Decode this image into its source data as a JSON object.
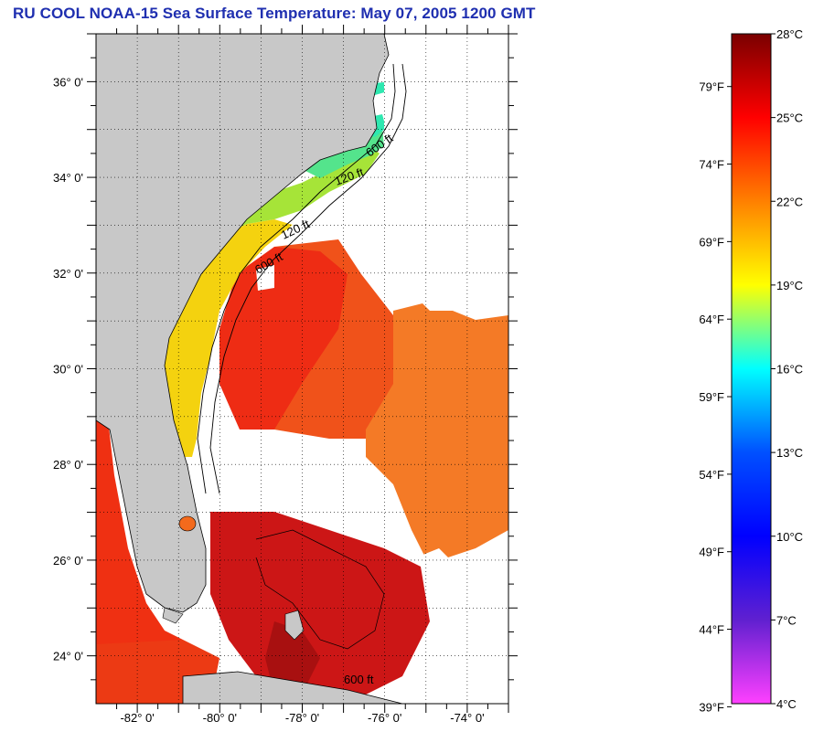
{
  "title": "RU COOL  NOAA-15  Sea Surface Temperature:  May 07, 2005 1200 GMT",
  "map": {
    "lat_labels": [
      "36° 0'",
      "34° 0'",
      "32° 0'",
      "30° 0'",
      "28° 0'",
      "26° 0'",
      "24° 0'"
    ],
    "lon_labels": [
      "-82° 0'",
      "-80° 0'",
      "-78° 0'",
      "-76° 0'",
      "-74° 0'"
    ],
    "lat_range": [
      23.0,
      37.0
    ],
    "lon_range": [
      -83.0,
      -73.0
    ],
    "contour_labels": [
      "600 ft",
      "120 ft",
      "600 ft",
      "120 ft",
      "600 ft"
    ],
    "colors": {
      "land": "#c8c8c8",
      "gulf_stream": "#ee2a14",
      "sargasso": "#f36a1c",
      "shelf_warm": "#f3d011",
      "shelf_cool": "#7fe35a",
      "sounds": "#2ee8b0",
      "bahamas": "#cc1616"
    }
  },
  "colorbar": {
    "celsius_labels": [
      "28°C",
      "25°C",
      "22°C",
      "19°C",
      "16°C",
      "13°C",
      "10°C",
      "7°C",
      "4°C"
    ],
    "fahrenheit_labels": [
      "79°F",
      "74°F",
      "69°F",
      "64°F",
      "59°F",
      "54°F",
      "49°F",
      "44°F",
      "39°F"
    ],
    "celsius_values": [
      28,
      25,
      22,
      19,
      16,
      13,
      10,
      7,
      4
    ],
    "fahrenheit_values": [
      79,
      74,
      69,
      64,
      59,
      54,
      49,
      44,
      39
    ],
    "gradient_stops": [
      "#7a0000",
      "#ff0000",
      "#ff8000",
      "#ffff00",
      "#00ffff",
      "#0050ff",
      "#0000ff",
      "#6020d0",
      "#ff40ff"
    ]
  }
}
